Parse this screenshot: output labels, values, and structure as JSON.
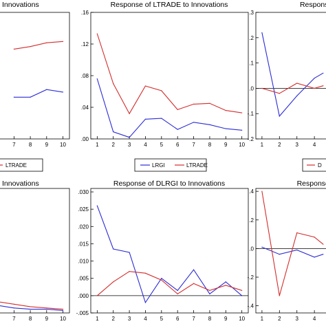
{
  "colors": {
    "series_a": "#2b2bd6",
    "series_b": "#d42b2b",
    "frame": "#000000",
    "zero": "#000000"
  },
  "chart_data": [
    {
      "id": "top-left",
      "type": "line",
      "title": "to Innovations",
      "x_ticks": [
        "7",
        "8",
        "9",
        "10"
      ],
      "x": [
        7,
        8,
        9,
        10
      ],
      "y_ticks": [],
      "ylim": [
        0,
        1
      ],
      "grid": false,
      "legend_label": "LTRADE",
      "series": [
        {
          "values": [
            0.33,
            0.33,
            0.39,
            0.37
          ]
        },
        {
          "values": [
            0.71,
            0.73,
            0.76,
            0.77
          ]
        }
      ]
    },
    {
      "id": "top-middle",
      "type": "line",
      "title": "Response of LTRADE to Innovations",
      "x_ticks": [
        "1",
        "2",
        "3",
        "4",
        "5",
        "6",
        "7",
        "8",
        "9",
        "10"
      ],
      "x": [
        1,
        2,
        3,
        4,
        5,
        6,
        7,
        8,
        9,
        10
      ],
      "y_ticks": [
        ".00",
        ".04",
        ".08",
        ".12",
        ".16"
      ],
      "ylim": [
        0,
        0.16
      ],
      "grid": false,
      "legend": "bottom",
      "series": [
        {
          "name": "LRGI",
          "values": [
            0.076,
            0.009,
            0.002,
            0.025,
            0.026,
            0.012,
            0.021,
            0.018,
            0.013,
            0.011
          ]
        },
        {
          "name": "LTRADE",
          "values": [
            0.133,
            0.07,
            0.032,
            0.067,
            0.061,
            0.037,
            0.044,
            0.045,
            0.036,
            0.033
          ]
        }
      ]
    },
    {
      "id": "top-right",
      "type": "line",
      "title": "Response o",
      "x_ticks": [
        "1",
        "2",
        "3",
        "4"
      ],
      "x": [
        1,
        2,
        3,
        4,
        4.5
      ],
      "y_ticks": [
        "-.2",
        "-.1",
        ".0",
        ".1",
        ".2",
        ".3"
      ],
      "ylim": [
        -0.2,
        0.3
      ],
      "grid": false,
      "legend_label": "D",
      "series": [
        {
          "values": [
            0.22,
            -0.11,
            -0.03,
            0.04,
            0.06
          ]
        },
        {
          "values": [
            0.0,
            -0.02,
            0.02,
            0.0,
            0.01
          ]
        }
      ]
    },
    {
      "id": "bottom-left",
      "type": "line",
      "title": "to Innovations",
      "x_ticks": [
        "7",
        "8",
        "9",
        "10"
      ],
      "x": [
        6,
        7,
        8,
        9,
        10
      ],
      "y_ticks": [],
      "ylim": [
        0,
        1
      ],
      "grid": false,
      "series": [
        {
          "values": [
            0.06,
            0.04,
            0.03,
            0.03,
            0.02
          ]
        },
        {
          "values": [
            0.09,
            0.07,
            0.05,
            0.04,
            0.03
          ]
        }
      ]
    },
    {
      "id": "bottom-middle",
      "type": "line",
      "title": "Response of DLRGI to Innovations",
      "x_ticks": [
        "1",
        "2",
        "3",
        "4",
        "5",
        "6",
        "7",
        "8",
        "9",
        "10"
      ],
      "x": [
        1,
        2,
        3,
        4,
        5,
        6,
        7,
        8,
        9,
        10
      ],
      "y_ticks": [
        "-.005",
        ".000",
        ".005",
        ".010",
        ".015",
        ".020",
        ".025",
        ".030"
      ],
      "ylim": [
        -0.005,
        0.031
      ],
      "grid": false,
      "series": [
        {
          "values": [
            0.026,
            0.0135,
            0.0125,
            -0.002,
            0.005,
            0.0015,
            0.0075,
            0.0005,
            0.004,
            0.0
          ]
        },
        {
          "values": [
            0.0,
            0.004,
            0.007,
            0.0065,
            0.0045,
            0.0005,
            0.0035,
            0.0015,
            0.003,
            0.0015
          ]
        }
      ]
    },
    {
      "id": "bottom-right",
      "type": "line",
      "title": "Response of I",
      "x_ticks": [
        "1",
        "2",
        "3",
        "4"
      ],
      "x": [
        1,
        2,
        3,
        4,
        4.5
      ],
      "y_ticks": [
        "-.4",
        "-.2",
        ".0",
        ".2",
        ".4"
      ],
      "ylim": [
        -0.45,
        0.42
      ],
      "grid": false,
      "series": [
        {
          "values": [
            0.01,
            -0.04,
            -0.01,
            -0.06,
            -0.04
          ]
        },
        {
          "values": [
            0.4,
            -0.33,
            0.11,
            0.08,
            0.03
          ]
        }
      ]
    }
  ]
}
